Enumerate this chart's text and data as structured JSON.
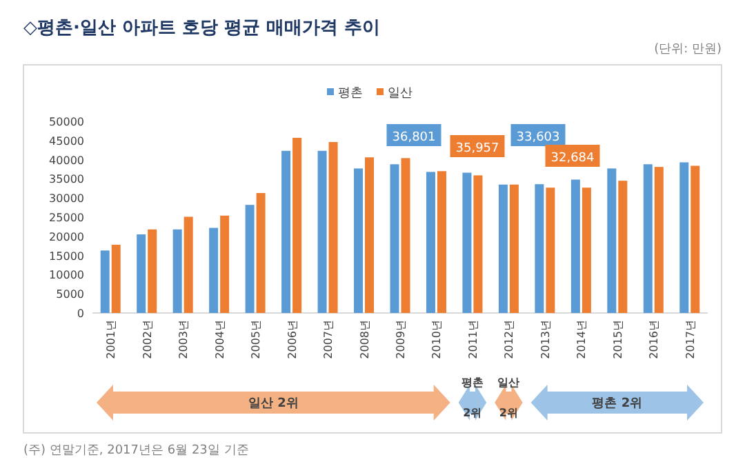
{
  "chart_data": {
    "type": "bar",
    "title": "◇평촌·일산 아파트 호당 평균 매매가격 추이",
    "categories": [
      "2001년",
      "2002년",
      "2003년",
      "2004년",
      "2005년",
      "2006년",
      "2007년",
      "2008년",
      "2009년",
      "2010년",
      "2011년",
      "2012년",
      "2013년",
      "2014년",
      "2015년",
      "2016년",
      "2017년"
    ],
    "series": [
      {
        "name": "평촌",
        "color": "#5b9bd5",
        "values": [
          16300,
          20500,
          21800,
          22200,
          28200,
          42300,
          42300,
          37700,
          38800,
          36800,
          36600,
          33500,
          33600,
          34800,
          37700,
          38800,
          39300
        ]
      },
      {
        "name": "일산",
        "color": "#ed7d31",
        "values": [
          17800,
          21800,
          25100,
          25400,
          31300,
          45700,
          44600,
          40600,
          40400,
          37000,
          35900,
          33500,
          32700,
          32700,
          34500,
          38100,
          38400
        ]
      }
    ],
    "ylim": [
      0,
      50000
    ],
    "yticks": [
      0,
      5000,
      10000,
      15000,
      20000,
      25000,
      30000,
      35000,
      40000,
      45000,
      50000
    ],
    "legend": "top",
    "grid": false,
    "annotations": [
      "(단위: 만원)",
      "일산 2위",
      "평촌 2위",
      "일산 2위",
      "평촌 2위",
      "(주) 연말기준, 2017년은 6월 23일 기준",
      "36,801",
      "35,957",
      "33,603",
      "32,684"
    ]
  }
}
